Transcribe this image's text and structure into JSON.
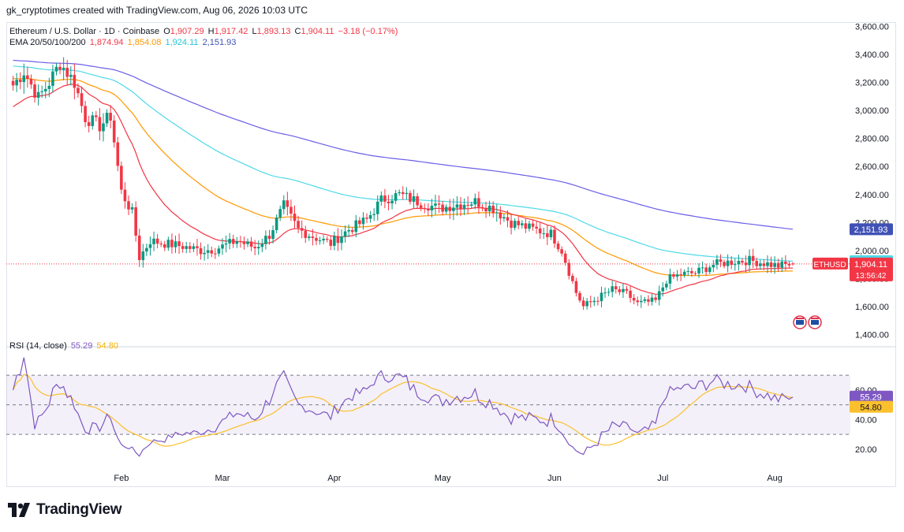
{
  "attribution": "gk_cryptotimes created with TradingView.com, Aug 06, 2026 10:03 UTC",
  "legend": {
    "symbol": "Ethereum / U.S. Dollar · 1D · Coinbase",
    "o_label": "O",
    "o": "1,907.29",
    "h_label": "H",
    "h": "1,917.42",
    "l_label": "L",
    "l": "1,893.13",
    "c_label": "C",
    "c": "1,904.11",
    "change": "−3.18 (−0.17%)",
    "ema_label": "EMA 20/50/100/200",
    "ema20": "1,874.94",
    "ema50": "1,854.08",
    "ema100": "1,924.11",
    "ema200": "2,151.93",
    "rsi_label": "RSI (14, close)",
    "rsi": "55.29",
    "rsi_ma": "54.80"
  },
  "logo_text": "TradingView",
  "colors": {
    "up": "#089981",
    "down": "#f23645",
    "ema20": "#f23645",
    "ema50": "#ff9800",
    "ema100": "#4dd9e8",
    "ema200": "#6a5ee8",
    "rsi": "#7e57c2",
    "rsi_ma": "#fbc02d"
  },
  "chart_data": [
    {
      "type": "candlestick",
      "title": "Ethereum / U.S. Dollar · 1D · Coinbase",
      "x_axis_labels": [
        "Feb",
        "Mar",
        "Apr",
        "May",
        "Jun",
        "Jul",
        "Aug"
      ],
      "y_tick_labels": [
        "3,600.00",
        "3,400.00",
        "3,200.00",
        "3,000.00",
        "2,800.00",
        "2,600.00",
        "2,400.00",
        "2,200.00",
        "2,000.00",
        "1,800.00",
        "1,600.00",
        "1,400.00"
      ],
      "ylim": [
        1380,
        3620
      ],
      "close_anchors": [
        [
          "2026-01-02",
          3180
        ],
        [
          "2026-01-05",
          3280
        ],
        [
          "2026-01-09",
          3090
        ],
        [
          "2026-01-12",
          3200
        ],
        [
          "2026-01-15",
          3340
        ],
        [
          "2026-01-19",
          3200
        ],
        [
          "2026-01-22",
          2950
        ],
        [
          "2026-01-26",
          2890
        ],
        [
          "2026-01-29",
          2960
        ],
        [
          "2026-02-01",
          2420
        ],
        [
          "2026-02-04",
          2270
        ],
        [
          "2026-02-06",
          1950
        ],
        [
          "2026-02-09",
          2070
        ],
        [
          "2026-02-13",
          2050
        ],
        [
          "2026-02-18",
          2030
        ],
        [
          "2026-02-23",
          2000
        ],
        [
          "2026-02-27",
          2010
        ],
        [
          "2026-03-05",
          2070
        ],
        [
          "2026-03-10",
          2020
        ],
        [
          "2026-03-14",
          2110
        ],
        [
          "2026-03-18",
          2320
        ],
        [
          "2026-03-22",
          2150
        ],
        [
          "2026-03-26",
          2100
        ],
        [
          "2026-03-31",
          2050
        ],
        [
          "2026-04-05",
          2150
        ],
        [
          "2026-04-10",
          2220
        ],
        [
          "2026-04-14",
          2360
        ],
        [
          "2026-04-19",
          2400
        ],
        [
          "2026-04-24",
          2350
        ],
        [
          "2026-04-30",
          2300
        ],
        [
          "2026-05-05",
          2330
        ],
        [
          "2026-05-10",
          2350
        ],
        [
          "2026-05-15",
          2300
        ],
        [
          "2026-05-20",
          2200
        ],
        [
          "2026-05-25",
          2160
        ],
        [
          "2026-05-31",
          2120
        ],
        [
          "2026-06-03",
          2000
        ],
        [
          "2026-06-07",
          1700
        ],
        [
          "2026-06-09",
          1600
        ],
        [
          "2026-06-13",
          1660
        ],
        [
          "2026-06-17",
          1720
        ],
        [
          "2026-06-21",
          1690
        ],
        [
          "2026-06-24",
          1620
        ],
        [
          "2026-06-29",
          1640
        ],
        [
          "2026-07-02",
          1790
        ],
        [
          "2026-07-06",
          1830
        ],
        [
          "2026-07-10",
          1840
        ],
        [
          "2026-07-15",
          1900
        ],
        [
          "2026-07-20",
          1920
        ],
        [
          "2026-07-25",
          1930
        ],
        [
          "2026-07-29",
          1910
        ],
        [
          "2026-08-02",
          1890
        ],
        [
          "2026-08-06",
          1904
        ]
      ],
      "last_values": {
        "symbol_label": "ETHUSD",
        "price": "1,904.11",
        "countdown": "13:56:42",
        "ema20": "1,874.94",
        "ema50": "1,854.08",
        "ema100": "1,924.11",
        "ema200": "2,151.93"
      }
    },
    {
      "type": "line",
      "title": "RSI (14, close)",
      "y_tick_labels": [
        "60.00",
        "40.00",
        "20.00"
      ],
      "ylim": [
        5,
        85
      ],
      "bands": [
        30,
        50,
        70
      ],
      "last_values": {
        "rsi": "55.29",
        "rsi_ma": "54.80"
      }
    }
  ]
}
